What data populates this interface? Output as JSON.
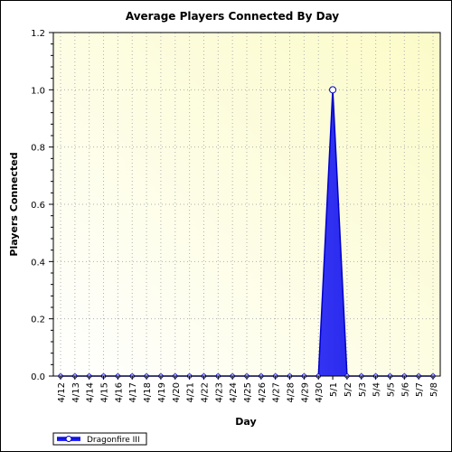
{
  "chart_data": {
    "type": "area",
    "title": "Average Players Connected By Day",
    "xlabel": "Day",
    "ylabel": "Players Connected",
    "categories": [
      "4/12",
      "4/13",
      "4/14",
      "4/15",
      "4/16",
      "4/17",
      "4/18",
      "4/19",
      "4/20",
      "4/21",
      "4/22",
      "4/23",
      "4/24",
      "4/25",
      "4/26",
      "4/27",
      "4/28",
      "4/29",
      "4/30",
      "5/1",
      "5/2",
      "5/3",
      "5/4",
      "5/5",
      "5/6",
      "5/7",
      "5/8"
    ],
    "series": [
      {
        "name": "Dragonfire III",
        "values": [
          0,
          0,
          0,
          0,
          0,
          0,
          0,
          0,
          0,
          0,
          0,
          0,
          0,
          0,
          0,
          0,
          0,
          0,
          0,
          1.0,
          0,
          0,
          0,
          0,
          0,
          0,
          0
        ]
      }
    ],
    "ylim": [
      0,
      1.2
    ],
    "yticks": [
      "0.0",
      "0.2",
      "0.4",
      "0.6",
      "0.8",
      "1.0",
      "1.2"
    ],
    "grid": true,
    "legend": "bottom-left",
    "colors": {
      "series": "#2a2aff",
      "series_dark": "#0000c8",
      "plot_bg_top": "#fdfdd8",
      "plot_bg_bottom": "#ffffff",
      "grid": "#b0b0b0"
    }
  }
}
